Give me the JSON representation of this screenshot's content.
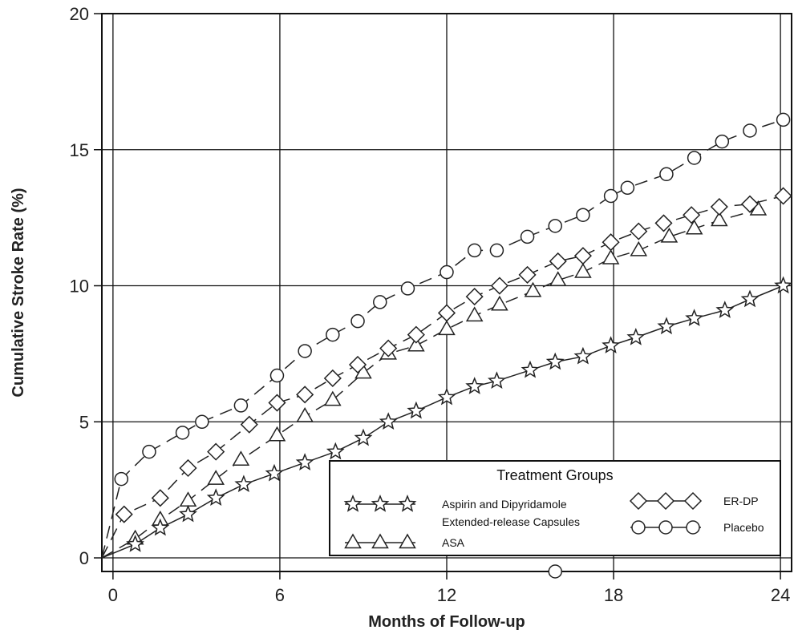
{
  "chart_data": {
    "type": "line",
    "title": "",
    "xlabel": "Months of Follow-up",
    "ylabel": "Cumulative Stroke Rate (%)",
    "xlim": [
      -0.4,
      24.4
    ],
    "ylim": [
      -0.5,
      20
    ],
    "xticks": [
      0,
      6,
      12,
      18,
      24
    ],
    "yticks": [
      0,
      5,
      10,
      15,
      20
    ],
    "grid": true,
    "legend": {
      "title": "Treatment Groups",
      "placement": "bottom-right",
      "columns": 2
    },
    "series": [
      {
        "name": "Aspirin and Dipyridamole Extended-release Capsules",
        "legend_lines": [
          "Aspirin and Dipyridamole",
          "Extended-release Capsules"
        ],
        "marker": "star",
        "line": "solid",
        "x": [
          -0.4,
          0.8,
          1.7,
          2.7,
          3.7,
          4.7,
          5.8,
          6.9,
          8.0,
          9.0,
          9.9,
          10.9,
          12.0,
          13.0,
          13.8,
          15.0,
          15.9,
          16.9,
          17.9,
          18.8,
          19.9,
          20.9,
          22.0,
          22.9,
          24.1
        ],
        "y": [
          0,
          0.5,
          1.1,
          1.6,
          2.2,
          2.7,
          3.1,
          3.5,
          3.9,
          4.4,
          5.0,
          5.4,
          5.9,
          6.3,
          6.5,
          6.9,
          7.2,
          7.4,
          7.8,
          8.1,
          8.5,
          8.8,
          9.1,
          9.5,
          10.0
        ]
      },
      {
        "name": "ASA",
        "legend_lines": [
          "ASA"
        ],
        "marker": "triangle",
        "line": "dashed",
        "x": [
          -0.4,
          0.8,
          1.7,
          2.7,
          3.7,
          4.6,
          5.9,
          6.9,
          7.9,
          9.0,
          9.9,
          10.9,
          12.0,
          13.0,
          13.9,
          15.1,
          16.0,
          16.9,
          17.9,
          18.9,
          20.0,
          20.9,
          21.8,
          23.2
        ],
        "y": [
          0,
          0.7,
          1.4,
          2.1,
          2.9,
          3.6,
          4.5,
          5.2,
          5.8,
          6.8,
          7.5,
          7.8,
          8.4,
          8.9,
          9.3,
          9.8,
          10.2,
          10.5,
          11.0,
          11.3,
          11.8,
          12.1,
          12.4,
          12.8
        ]
      },
      {
        "name": "ER-DP",
        "legend_lines": [
          "ER-DP"
        ],
        "marker": "diamond",
        "line": "dashed",
        "x": [
          -0.4,
          0.4,
          1.7,
          2.7,
          3.7,
          4.9,
          5.9,
          6.9,
          7.9,
          8.8,
          9.9,
          10.9,
          12.0,
          13.0,
          13.9,
          14.9,
          16.0,
          16.9,
          17.9,
          18.9,
          19.8,
          20.8,
          21.8,
          22.9,
          24.1
        ],
        "y": [
          0,
          1.6,
          2.2,
          3.3,
          3.9,
          4.9,
          5.7,
          6.0,
          6.6,
          7.1,
          7.7,
          8.2,
          9.0,
          9.6,
          10.0,
          10.4,
          10.9,
          11.1,
          11.6,
          12.0,
          12.3,
          12.6,
          12.9,
          13.0,
          13.3
        ]
      },
      {
        "name": "Placebo",
        "legend_lines": [
          "Placebo"
        ],
        "marker": "circle",
        "line": "dashed",
        "x": [
          -0.4,
          0.3,
          1.3,
          2.5,
          3.2,
          4.6,
          5.9,
          6.9,
          7.9,
          8.8,
          9.6,
          10.6,
          12.0,
          13.0,
          13.8,
          14.9,
          15.9,
          16.9,
          17.9,
          18.5,
          19.9,
          20.9,
          21.9,
          22.9,
          24.1
        ],
        "y": [
          0,
          2.9,
          3.9,
          4.6,
          5.0,
          5.6,
          6.7,
          7.6,
          8.2,
          8.7,
          9.4,
          9.9,
          10.5,
          11.3,
          11.3,
          11.8,
          12.2,
          12.6,
          13.3,
          13.6,
          14.1,
          14.7,
          15.3,
          15.7,
          16.1
        ]
      }
    ],
    "outliers": [
      {
        "series": "Placebo",
        "marker": "circle",
        "x": 15.9,
        "y": -0.5
      }
    ]
  }
}
